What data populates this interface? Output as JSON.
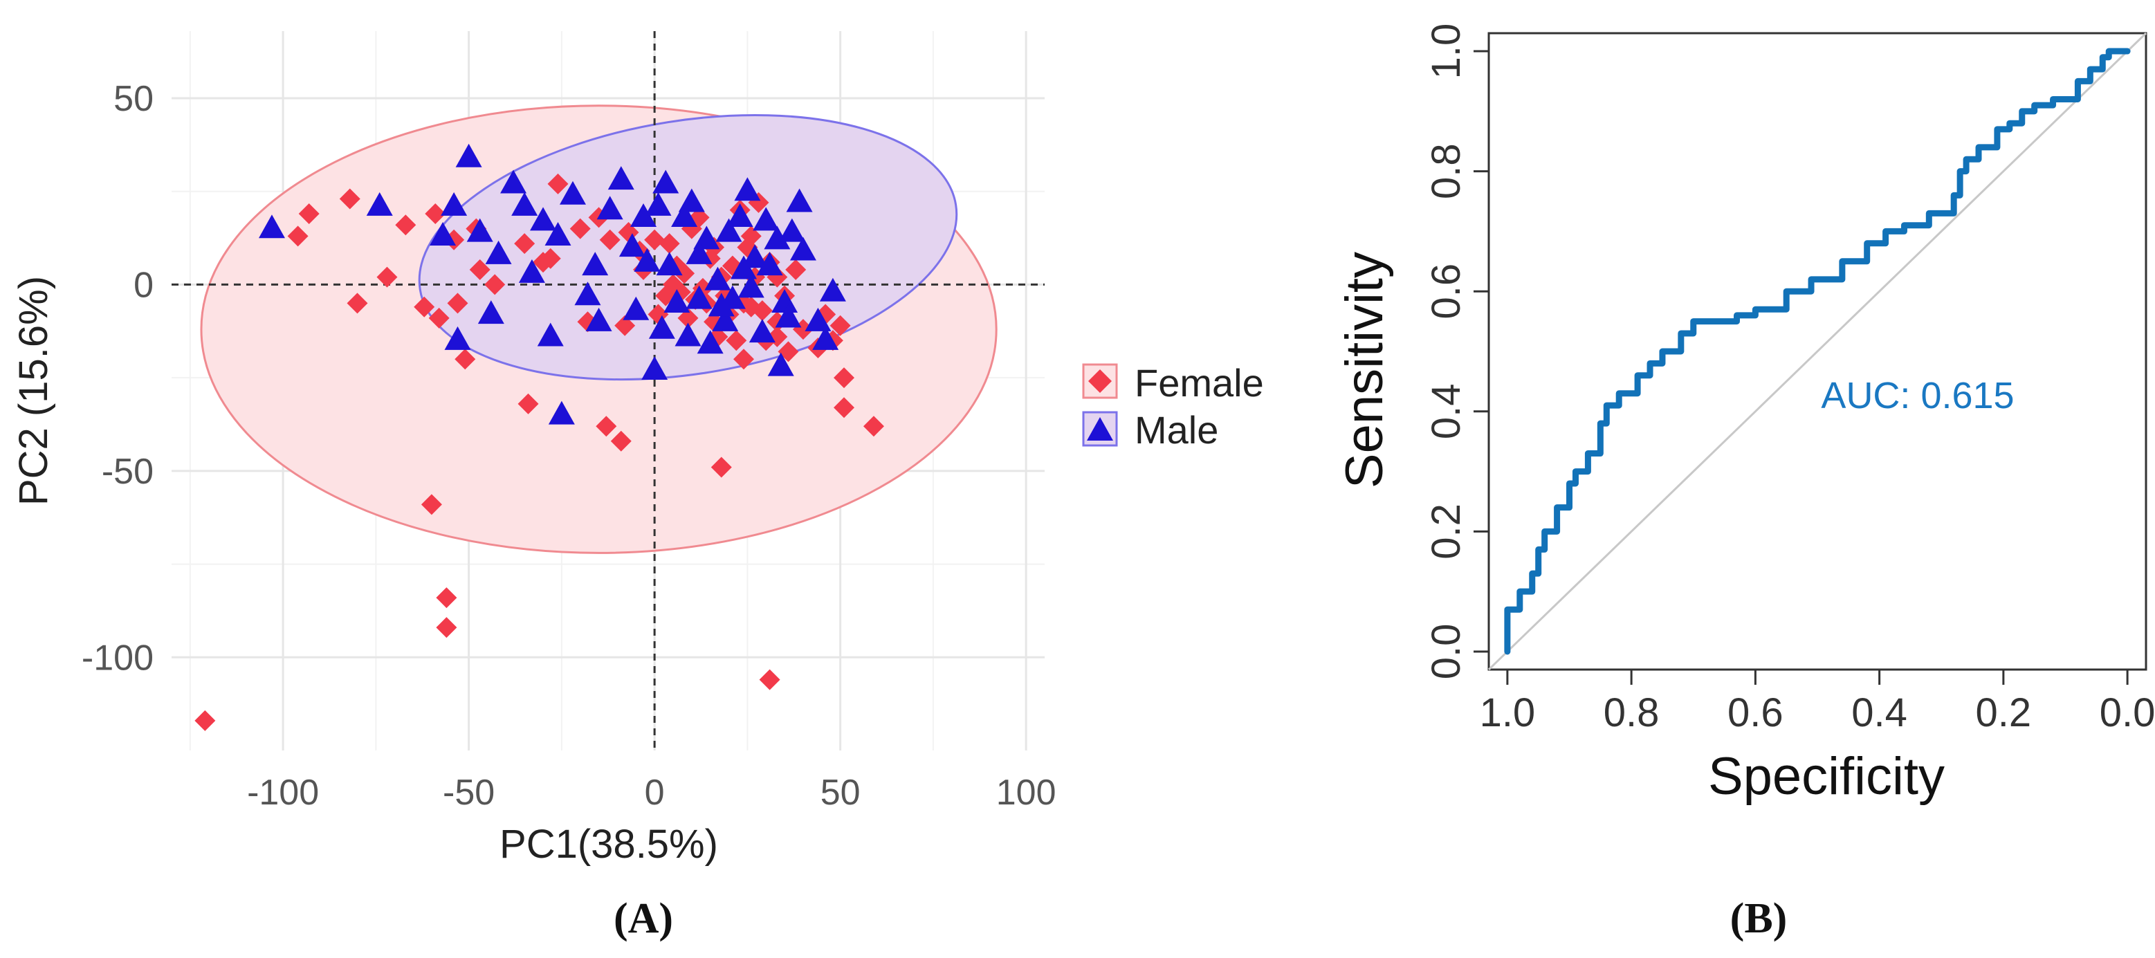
{
  "chart_data": [
    {
      "type": "scatter",
      "panel_label": "(A)",
      "xlabel": "PC1(38.5%)",
      "ylabel": "PC2 (15.6%)",
      "xlim": [
        -130,
        105
      ],
      "ylim": [
        -125,
        68
      ],
      "xticks": [
        -100,
        -50,
        0,
        50,
        100
      ],
      "yticks": [
        50,
        0,
        -50,
        -100
      ],
      "grid": true,
      "reference_lines": {
        "x": 0,
        "y": 0
      },
      "legend": {
        "position": "right",
        "entries": [
          "Female",
          "Male"
        ]
      },
      "colors": {
        "female": "#f23a4a",
        "male": "#1d10d6",
        "female_fill": "#fde2e4",
        "male_fill": "#e4d4f0",
        "female_edge": "#f08a90",
        "male_edge": "#7c72ea"
      },
      "ellipses": [
        {
          "series": "Female",
          "center": [
            -15,
            -12
          ],
          "semi_axes": [
            107,
            60
          ],
          "angle_deg": 0
        },
        {
          "series": "Male",
          "center": [
            9,
            10
          ],
          "semi_axes": [
            73,
            34
          ],
          "angle_deg": -9
        }
      ],
      "series": [
        {
          "name": "Female",
          "marker": "diamond",
          "points": [
            [
              -121,
              -117
            ],
            [
              -56,
              -92
            ],
            [
              -56,
              -84
            ],
            [
              -60,
              -59
            ],
            [
              31,
              -106
            ],
            [
              18,
              -49
            ],
            [
              -96,
              13
            ],
            [
              -93,
              19
            ],
            [
              -82,
              23
            ],
            [
              -80,
              -5
            ],
            [
              -72,
              2
            ],
            [
              -67,
              16
            ],
            [
              -62,
              -6
            ],
            [
              -58,
              -9
            ],
            [
              -53,
              -5
            ],
            [
              -51,
              -20
            ],
            [
              -59,
              19
            ],
            [
              -54,
              12
            ],
            [
              -48,
              15
            ],
            [
              -47,
              4
            ],
            [
              -43,
              0
            ],
            [
              -34,
              -32
            ],
            [
              -13,
              -38
            ],
            [
              -9,
              -42
            ],
            [
              -35,
              11
            ],
            [
              -30,
              6
            ],
            [
              -28,
              7
            ],
            [
              -26,
              27
            ],
            [
              -20,
              15
            ],
            [
              -15,
              18
            ],
            [
              -12,
              12
            ],
            [
              -7,
              14
            ],
            [
              -4,
              9
            ],
            [
              0,
              12
            ],
            [
              4,
              11
            ],
            [
              7,
              -2
            ],
            [
              10,
              15
            ],
            [
              12,
              18
            ],
            [
              14,
              -5
            ],
            [
              16,
              10
            ],
            [
              18,
              2
            ],
            [
              20,
              -8
            ],
            [
              22,
              -15
            ],
            [
              24,
              -20
            ],
            [
              26,
              13
            ],
            [
              28,
              22
            ],
            [
              30,
              -15
            ],
            [
              33,
              -10
            ],
            [
              35,
              -3
            ],
            [
              38,
              4
            ],
            [
              40,
              -12
            ],
            [
              44,
              -17
            ],
            [
              46,
              -8
            ],
            [
              48,
              -15
            ],
            [
              50,
              -11
            ],
            [
              51,
              -25
            ],
            [
              51,
              -33
            ],
            [
              59,
              -38
            ],
            [
              3,
              -3
            ],
            [
              5,
              0
            ],
            [
              8,
              3
            ],
            [
              11,
              -4
            ],
            [
              13,
              -1
            ],
            [
              16,
              -10
            ],
            [
              19,
              -3
            ],
            [
              21,
              5
            ],
            [
              23,
              20
            ],
            [
              25,
              10
            ],
            [
              27,
              2
            ],
            [
              29,
              -7
            ],
            [
              31,
              6
            ],
            [
              33,
              -14
            ],
            [
              -3,
              4
            ],
            [
              1,
              -8
            ],
            [
              6,
              5
            ],
            [
              9,
              -9
            ],
            [
              15,
              7
            ],
            [
              17,
              -14
            ],
            [
              24,
              -5
            ],
            [
              36,
              -18
            ],
            [
              -8,
              -11
            ],
            [
              26,
              -6
            ],
            [
              33,
              2
            ],
            [
              -18,
              -10
            ]
          ]
        },
        {
          "name": "Male",
          "marker": "triangle",
          "points": [
            [
              -103,
              15
            ],
            [
              -74,
              21
            ],
            [
              -57,
              13
            ],
            [
              -54,
              21
            ],
            [
              -50,
              34
            ],
            [
              -53,
              -15
            ],
            [
              -47,
              14
            ],
            [
              -42,
              8
            ],
            [
              -38,
              27
            ],
            [
              -35,
              21
            ],
            [
              -30,
              17
            ],
            [
              -26,
              13
            ],
            [
              -22,
              24
            ],
            [
              -18,
              -3
            ],
            [
              -15,
              -10
            ],
            [
              -12,
              20
            ],
            [
              -9,
              28
            ],
            [
              -6,
              10
            ],
            [
              -3,
              18
            ],
            [
              1,
              21
            ],
            [
              3,
              27
            ],
            [
              6,
              -5
            ],
            [
              9,
              -14
            ],
            [
              12,
              -4
            ],
            [
              14,
              12
            ],
            [
              17,
              1
            ],
            [
              19,
              -10
            ],
            [
              21,
              -4
            ],
            [
              23,
              18
            ],
            [
              25,
              25
            ],
            [
              27,
              7
            ],
            [
              29,
              -13
            ],
            [
              31,
              5
            ],
            [
              33,
              12
            ],
            [
              35,
              -5
            ],
            [
              37,
              14
            ],
            [
              39,
              22
            ],
            [
              40,
              9
            ],
            [
              44,
              -10
            ],
            [
              46,
              -15
            ],
            [
              48,
              -2
            ],
            [
              -25,
              -35
            ],
            [
              -44,
              -8
            ],
            [
              -33,
              3
            ],
            [
              -5,
              -7
            ],
            [
              0,
              -23
            ],
            [
              4,
              5
            ],
            [
              15,
              -16
            ],
            [
              8,
              18
            ],
            [
              -2,
              6
            ],
            [
              10,
              22
            ],
            [
              20,
              14
            ],
            [
              26,
              -1
            ],
            [
              34,
              -22
            ],
            [
              30,
              17
            ],
            [
              12,
              8
            ],
            [
              -16,
              5
            ],
            [
              2,
              -12
            ],
            [
              18,
              -6
            ],
            [
              24,
              4
            ],
            [
              36,
              -9
            ],
            [
              -28,
              -14
            ]
          ]
        }
      ]
    },
    {
      "type": "line",
      "panel_label": "(B)",
      "xlabel": "Specificity",
      "ylabel": "Sensitivity",
      "xlim": [
        1.03,
        -0.03
      ],
      "ylim": [
        -0.03,
        1.03
      ],
      "xticks": [
        1.0,
        0.8,
        0.6,
        0.4,
        0.2,
        0.0
      ],
      "yticks": [
        0.0,
        0.2,
        0.4,
        0.6,
        0.8,
        1.0
      ],
      "xtick_labels": [
        "1.0",
        "0.8",
        "0.6",
        "0.4",
        "0.2",
        "0.0"
      ],
      "ytick_labels": [
        "0.0",
        "0.2",
        "0.4",
        "0.6",
        "0.8",
        "1.0"
      ],
      "annotation": "AUC: 0.615",
      "diagonal": [
        [
          1.0,
          0.0
        ],
        [
          0.0,
          1.0
        ]
      ],
      "colors": {
        "roc": "#1272b8",
        "diagonal": "#c8c8c8",
        "annotation": "#1a78c2"
      },
      "series": [
        {
          "name": "ROC",
          "points": [
            [
              1.0,
              0.0
            ],
            [
              1.0,
              0.05
            ],
            [
              0.98,
              0.07
            ],
            [
              0.96,
              0.1
            ],
            [
              0.95,
              0.13
            ],
            [
              0.94,
              0.17
            ],
            [
              0.92,
              0.2
            ],
            [
              0.9,
              0.24
            ],
            [
              0.89,
              0.28
            ],
            [
              0.87,
              0.3
            ],
            [
              0.85,
              0.33
            ],
            [
              0.84,
              0.38
            ],
            [
              0.82,
              0.41
            ],
            [
              0.79,
              0.43
            ],
            [
              0.77,
              0.46
            ],
            [
              0.75,
              0.48
            ],
            [
              0.72,
              0.5
            ],
            [
              0.7,
              0.53
            ],
            [
              0.68,
              0.55
            ],
            [
              0.63,
              0.55
            ],
            [
              0.6,
              0.56
            ],
            [
              0.55,
              0.57
            ],
            [
              0.51,
              0.6
            ],
            [
              0.46,
              0.62
            ],
            [
              0.42,
              0.65
            ],
            [
              0.39,
              0.68
            ],
            [
              0.36,
              0.7
            ],
            [
              0.32,
              0.71
            ],
            [
              0.28,
              0.73
            ],
            [
              0.27,
              0.76
            ],
            [
              0.26,
              0.8
            ],
            [
              0.24,
              0.82
            ],
            [
              0.21,
              0.84
            ],
            [
              0.19,
              0.87
            ],
            [
              0.17,
              0.88
            ],
            [
              0.15,
              0.9
            ],
            [
              0.12,
              0.91
            ],
            [
              0.08,
              0.92
            ],
            [
              0.06,
              0.95
            ],
            [
              0.04,
              0.97
            ],
            [
              0.03,
              0.99
            ],
            [
              0.01,
              1.0
            ],
            [
              0.0,
              1.0
            ]
          ]
        }
      ]
    }
  ]
}
